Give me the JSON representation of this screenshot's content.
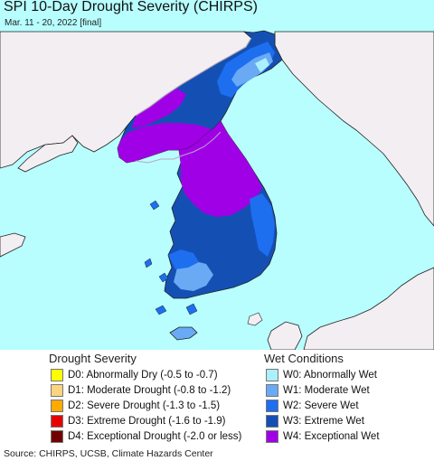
{
  "header": {
    "title": "SPI 10-Day Drought Severity (CHIRPS)",
    "subtitle": "Mar. 11 - 20, 2022 [final]"
  },
  "map": {
    "colors": {
      "ocean": "#b8fefe",
      "land_no_data": "#f3eef2",
      "coastline": "#222222",
      "border": "#b9a9c4"
    }
  },
  "legend": {
    "drought": {
      "heading": "Drought Severity",
      "items": [
        {
          "label": "D0: Abnormally Dry (-0.5 to -0.7)",
          "color": "#ffff00"
        },
        {
          "label": "D1: Moderate Drought (-0.8 to -1.2)",
          "color": "#fcd37f"
        },
        {
          "label": "D2: Severe Drought (-1.3 to -1.5)",
          "color": "#ffaa00"
        },
        {
          "label": "D3: Extreme Drought (-1.6 to -1.9)",
          "color": "#e60000"
        },
        {
          "label": "D4: Exceptional Drought (-2.0 or less)",
          "color": "#730000"
        }
      ]
    },
    "wet": {
      "heading": "Wet Conditions",
      "items": [
        {
          "label": "W0: Abnormally Wet",
          "color": "#aaf0ff"
        },
        {
          "label": "W1: Moderate Wet",
          "color": "#6aaaf4"
        },
        {
          "label": "W2: Severe Wet",
          "color": "#1e6ef0"
        },
        {
          "label": "W3: Extreme Wet",
          "color": "#1450b4"
        },
        {
          "label": "W4: Exceptional Wet",
          "color": "#a000e6"
        }
      ]
    }
  },
  "footer": {
    "source": "Source: CHIRPS, UCSB, Climate Hazards Center"
  }
}
